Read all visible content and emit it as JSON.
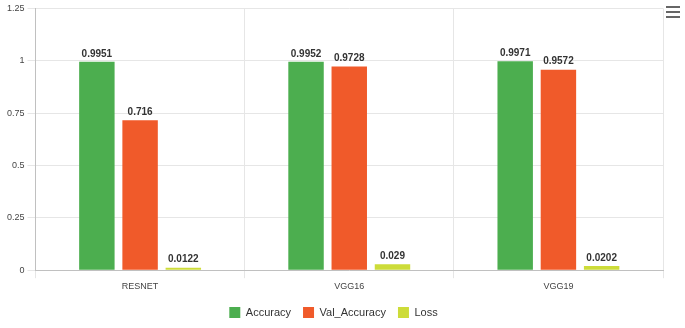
{
  "chart_data": {
    "type": "bar",
    "categories": [
      "RESNET",
      "VGG16",
      "VGG19"
    ],
    "series": [
      {
        "name": "Accuracy",
        "color": "#4cae4f",
        "values": [
          0.9951,
          0.9952,
          0.9971
        ]
      },
      {
        "name": "Val_Accuracy",
        "color": "#f05a2a",
        "values": [
          0.716,
          0.9728,
          0.9572
        ]
      },
      {
        "name": "Loss",
        "color": "#cddc39",
        "values": [
          0.0122,
          0.029,
          0.0202
        ]
      }
    ],
    "ylim": [
      0,
      1.25
    ],
    "yticks": [
      0,
      0.25,
      0.5,
      0.75,
      1,
      1.25
    ],
    "grid": true,
    "legend": "bottom",
    "data_labels": true
  }
}
